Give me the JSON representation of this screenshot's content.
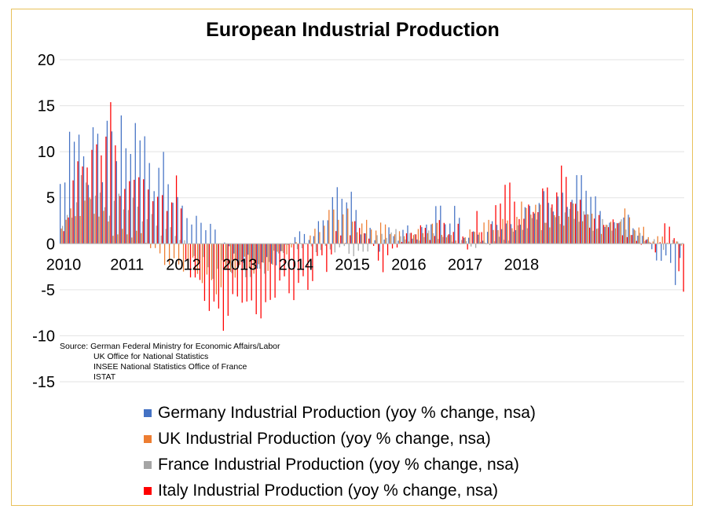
{
  "chart_data": {
    "type": "bar",
    "title": "European Industrial Production",
    "xlabel": "",
    "ylabel": "",
    "ylim": [
      -15,
      20
    ],
    "yticks": [
      20,
      15,
      10,
      5,
      0,
      -5,
      -10,
      -15
    ],
    "x_tick_labels": [
      "2010",
      "2011",
      "2012",
      "2013",
      "2014",
      "2015",
      "2016",
      "2017",
      "2018"
    ],
    "grid": true,
    "legend_position": "bottom",
    "series": [
      {
        "name": "Germany Industrial Production (yoy % change, nsa)",
        "color": "#4472c4",
        "keypoints": [
          [
            0,
            5.3
          ],
          [
            1.5,
            8.6
          ],
          [
            2,
            13.2
          ],
          [
            3,
            10.8
          ],
          [
            4,
            12.2
          ],
          [
            5,
            11.0
          ],
          [
            6,
            6.5
          ],
          [
            7,
            11.2
          ],
          [
            8,
            11.5
          ],
          [
            9,
            7.0
          ],
          [
            10,
            12.4
          ],
          [
            11,
            11.2
          ],
          [
            12,
            10.0
          ],
          [
            13,
            15.3
          ],
          [
            14,
            10.2
          ],
          [
            15,
            9.8
          ],
          [
            16,
            14.3
          ],
          [
            17,
            11.2
          ],
          [
            18,
            10.0
          ],
          [
            20,
            6.2
          ],
          [
            22,
            9.2
          ],
          [
            24,
            6.0
          ],
          [
            26,
            3.8
          ],
          [
            27,
            3.6
          ],
          [
            28,
            2.0
          ],
          [
            30,
            1.8
          ],
          [
            32,
            2.1
          ],
          [
            34,
            0.4
          ],
          [
            35,
            0.8
          ],
          [
            37,
            -1.5
          ],
          [
            40,
            -2.5
          ],
          [
            43,
            -1.8
          ],
          [
            46,
            -1.5
          ],
          [
            48,
            -0.5
          ],
          [
            50,
            0.7
          ],
          [
            52,
            0.8
          ],
          [
            54,
            1.2
          ],
          [
            56,
            3.2
          ],
          [
            58,
            4.5
          ],
          [
            60,
            4.8
          ],
          [
            62,
            4.5
          ],
          [
            64,
            2.0
          ],
          [
            66,
            1.5
          ],
          [
            68,
            -0.5
          ],
          [
            70,
            1.0
          ],
          [
            72,
            0.5
          ],
          [
            74,
            1.8
          ],
          [
            76,
            1.0
          ],
          [
            78,
            2.0
          ],
          [
            80,
            3.4
          ],
          [
            82,
            2.0
          ],
          [
            84,
            3.8
          ],
          [
            86,
            1.5
          ],
          [
            88,
            1.0
          ],
          [
            90,
            0.5
          ],
          [
            92,
            1.5
          ],
          [
            94,
            2.5
          ],
          [
            96,
            2.0
          ],
          [
            98,
            3.0
          ],
          [
            100,
            3.2
          ],
          [
            102,
            4.0
          ],
          [
            104,
            4.5
          ],
          [
            106,
            5.5
          ],
          [
            108,
            5.0
          ],
          [
            110,
            6.3
          ],
          [
            112,
            6.0
          ],
          [
            114,
            4.0
          ],
          [
            116,
            3.5
          ],
          [
            118,
            2.0
          ],
          [
            120,
            3.5
          ],
          [
            122,
            1.0
          ],
          [
            124,
            1.0
          ],
          [
            126,
            -0.5
          ],
          [
            128,
            -1.5
          ],
          [
            130,
            -2.0
          ],
          [
            131,
            -4.0
          ],
          [
            132,
            -2.5
          ]
        ]
      },
      {
        "name": "UK Industrial Production (yoy % change, nsa)",
        "color": "#ed7d31",
        "keypoints": [
          [
            0,
            2.8
          ],
          [
            4,
            4.2
          ],
          [
            8,
            3.0
          ],
          [
            12,
            1.5
          ],
          [
            16,
            1.0
          ],
          [
            20,
            -0.8
          ],
          [
            24,
            -2.0
          ],
          [
            28,
            -3.0
          ],
          [
            32,
            -4.0
          ],
          [
            36,
            -3.5
          ],
          [
            40,
            -2.5
          ],
          [
            44,
            -2.0
          ],
          [
            48,
            -1.0
          ],
          [
            52,
            0.5
          ],
          [
            56,
            2.5
          ],
          [
            60,
            3.0
          ],
          [
            64,
            2.5
          ],
          [
            68,
            1.5
          ],
          [
            72,
            1.0
          ],
          [
            76,
            1.2
          ],
          [
            80,
            1.5
          ],
          [
            84,
            0.5
          ],
          [
            88,
            1.2
          ],
          [
            92,
            2.0
          ],
          [
            96,
            3.0
          ],
          [
            100,
            3.5
          ],
          [
            104,
            3.0
          ],
          [
            108,
            3.0
          ],
          [
            112,
            2.8
          ],
          [
            116,
            2.0
          ],
          [
            120,
            2.5
          ],
          [
            124,
            1.5
          ],
          [
            128,
            0.5
          ],
          [
            132,
            -0.5
          ]
        ]
      },
      {
        "name": "France Industrial Production (yoy % change, nsa)",
        "color": "#a5a5a5",
        "keypoints": [
          [
            0,
            2.0
          ],
          [
            4,
            6.0
          ],
          [
            8,
            4.5
          ],
          [
            12,
            5.0
          ],
          [
            16,
            3.0
          ],
          [
            20,
            2.5
          ],
          [
            24,
            1.0
          ],
          [
            28,
            -1.0
          ],
          [
            32,
            -2.5
          ],
          [
            36,
            -3.0
          ],
          [
            40,
            -2.8
          ],
          [
            44,
            -2.0
          ],
          [
            48,
            -0.5
          ],
          [
            52,
            0.0
          ],
          [
            56,
            -1.0
          ],
          [
            60,
            -0.5
          ],
          [
            64,
            -1.0
          ],
          [
            68,
            0.8
          ],
          [
            72,
            1.5
          ],
          [
            76,
            0.5
          ],
          [
            80,
            1.0
          ],
          [
            84,
            0.5
          ],
          [
            88,
            -0.5
          ],
          [
            92,
            0.5
          ],
          [
            96,
            1.0
          ],
          [
            100,
            2.0
          ],
          [
            104,
            3.5
          ],
          [
            108,
            2.5
          ],
          [
            112,
            3.0
          ],
          [
            116,
            2.0
          ],
          [
            120,
            1.5
          ],
          [
            124,
            1.0
          ],
          [
            128,
            -0.5
          ],
          [
            132,
            0.5
          ]
        ]
      },
      {
        "name": "Italy Industrial Production (yoy % change, nsa)",
        "color": "#ff0000",
        "keypoints": [
          [
            0,
            1.5
          ],
          [
            2,
            6.5
          ],
          [
            4,
            8.0
          ],
          [
            6,
            9.5
          ],
          [
            8,
            11.0
          ],
          [
            10,
            15.0
          ],
          [
            12,
            6.0
          ],
          [
            14,
            5.0
          ],
          [
            16,
            8.0
          ],
          [
            18,
            5.5
          ],
          [
            20,
            6.5
          ],
          [
            22,
            3.0
          ],
          [
            24,
            7.0
          ],
          [
            26,
            -2.0
          ],
          [
            28,
            -3.5
          ],
          [
            30,
            -5.0
          ],
          [
            32,
            -7.0
          ],
          [
            34,
            -9.2
          ],
          [
            36,
            -7.0
          ],
          [
            38,
            -5.0
          ],
          [
            40,
            -6.5
          ],
          [
            42,
            -7.0
          ],
          [
            44,
            -7.5
          ],
          [
            46,
            -4.0
          ],
          [
            48,
            -5.5
          ],
          [
            50,
            -3.5
          ],
          [
            52,
            -4.5
          ],
          [
            54,
            -2.0
          ],
          [
            56,
            -3.0
          ],
          [
            58,
            1.0
          ],
          [
            60,
            0.8
          ],
          [
            62,
            2.0
          ],
          [
            64,
            1.5
          ],
          [
            66,
            -1.0
          ],
          [
            68,
            -2.5
          ],
          [
            70,
            -0.5
          ],
          [
            72,
            0.5
          ],
          [
            74,
            1.0
          ],
          [
            76,
            1.5
          ],
          [
            78,
            0.5
          ],
          [
            80,
            2.5
          ],
          [
            82,
            2.0
          ],
          [
            84,
            1.5
          ],
          [
            86,
            -0.5
          ],
          [
            88,
            2.5
          ],
          [
            90,
            0.5
          ],
          [
            92,
            4.0
          ],
          [
            94,
            7.0
          ],
          [
            96,
            3.5
          ],
          [
            98,
            2.5
          ],
          [
            100,
            4.0
          ],
          [
            102,
            6.3
          ],
          [
            104,
            5.0
          ],
          [
            106,
            7.0
          ],
          [
            108,
            5.0
          ],
          [
            110,
            4.0
          ],
          [
            112,
            3.5
          ],
          [
            114,
            2.5
          ],
          [
            116,
            2.0
          ],
          [
            118,
            1.5
          ],
          [
            120,
            1.0
          ],
          [
            122,
            0.5
          ],
          [
            124,
            0.5
          ],
          [
            126,
            -1.0
          ],
          [
            128,
            1.5
          ],
          [
            130,
            1.0
          ],
          [
            132,
            -5.5
          ]
        ]
      }
    ]
  },
  "source": {
    "lines": [
      "Source: German Federal Ministry for Economic Affairs/Labor",
      "UK Office for National Statistics",
      "INSEE National Statistics Office of France",
      "ISTAT"
    ]
  }
}
